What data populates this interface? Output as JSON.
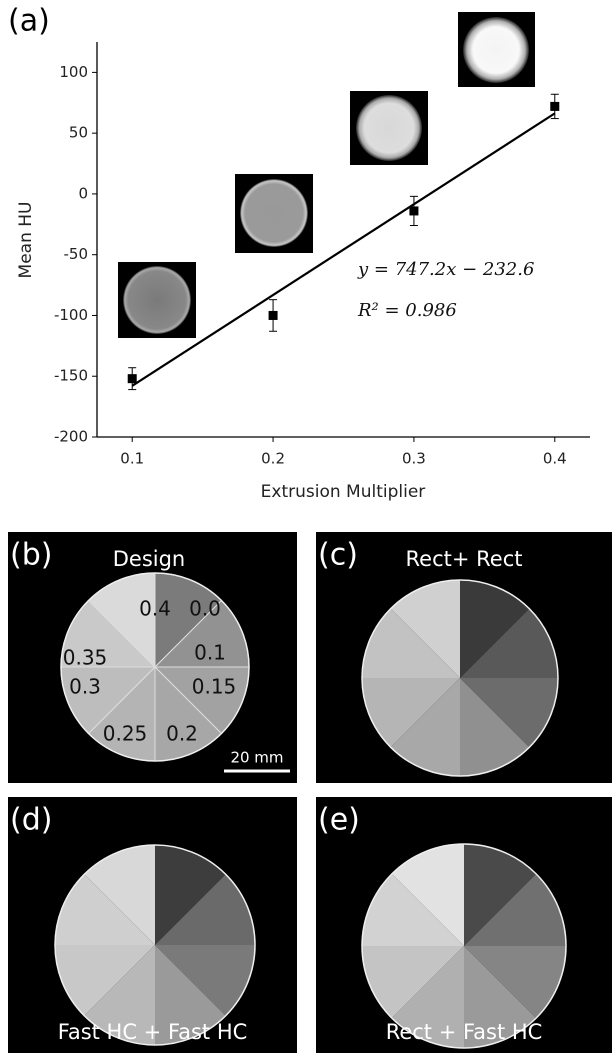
{
  "chart_data": {
    "type": "scatter",
    "panel_label": "(a)",
    "x_label": "Extrusion Multiplier",
    "y_label": "Mean HU",
    "x": [
      0.1,
      0.2,
      0.3,
      0.4
    ],
    "series": [
      {
        "color": "#000000",
        "values": [
          -152,
          -100,
          -14,
          72
        ],
        "errors": [
          9,
          13,
          12,
          10
        ]
      }
    ],
    "fit": {
      "slope": 747.2,
      "intercept": -232.6,
      "color": "#000000"
    },
    "annotations": [
      "y = 747.2x − 232.6",
      "R² = 0.986"
    ],
    "xlim": [
      0.075,
      0.425
    ],
    "ylim": [
      -200,
      125
    ],
    "xticks": [
      0.1,
      0.2,
      0.3,
      0.4
    ],
    "yticks": [
      100,
      50,
      0,
      -50,
      -100,
      -150,
      -200
    ]
  },
  "panels": [
    {
      "label": "(b)",
      "title": "Design",
      "sector_labels": [
        "0.0",
        "0.1",
        "0.15",
        "0.2",
        "0.25",
        "0.3",
        "0.35",
        "0.4"
      ],
      "scale_bar": "20 mm"
    },
    {
      "label": "(c)",
      "title": "Rect+ Rect"
    },
    {
      "label": "(d)",
      "title": "Fast HC + Fast HC"
    },
    {
      "label": "(e)",
      "title": "Rect + Fast HC"
    }
  ]
}
